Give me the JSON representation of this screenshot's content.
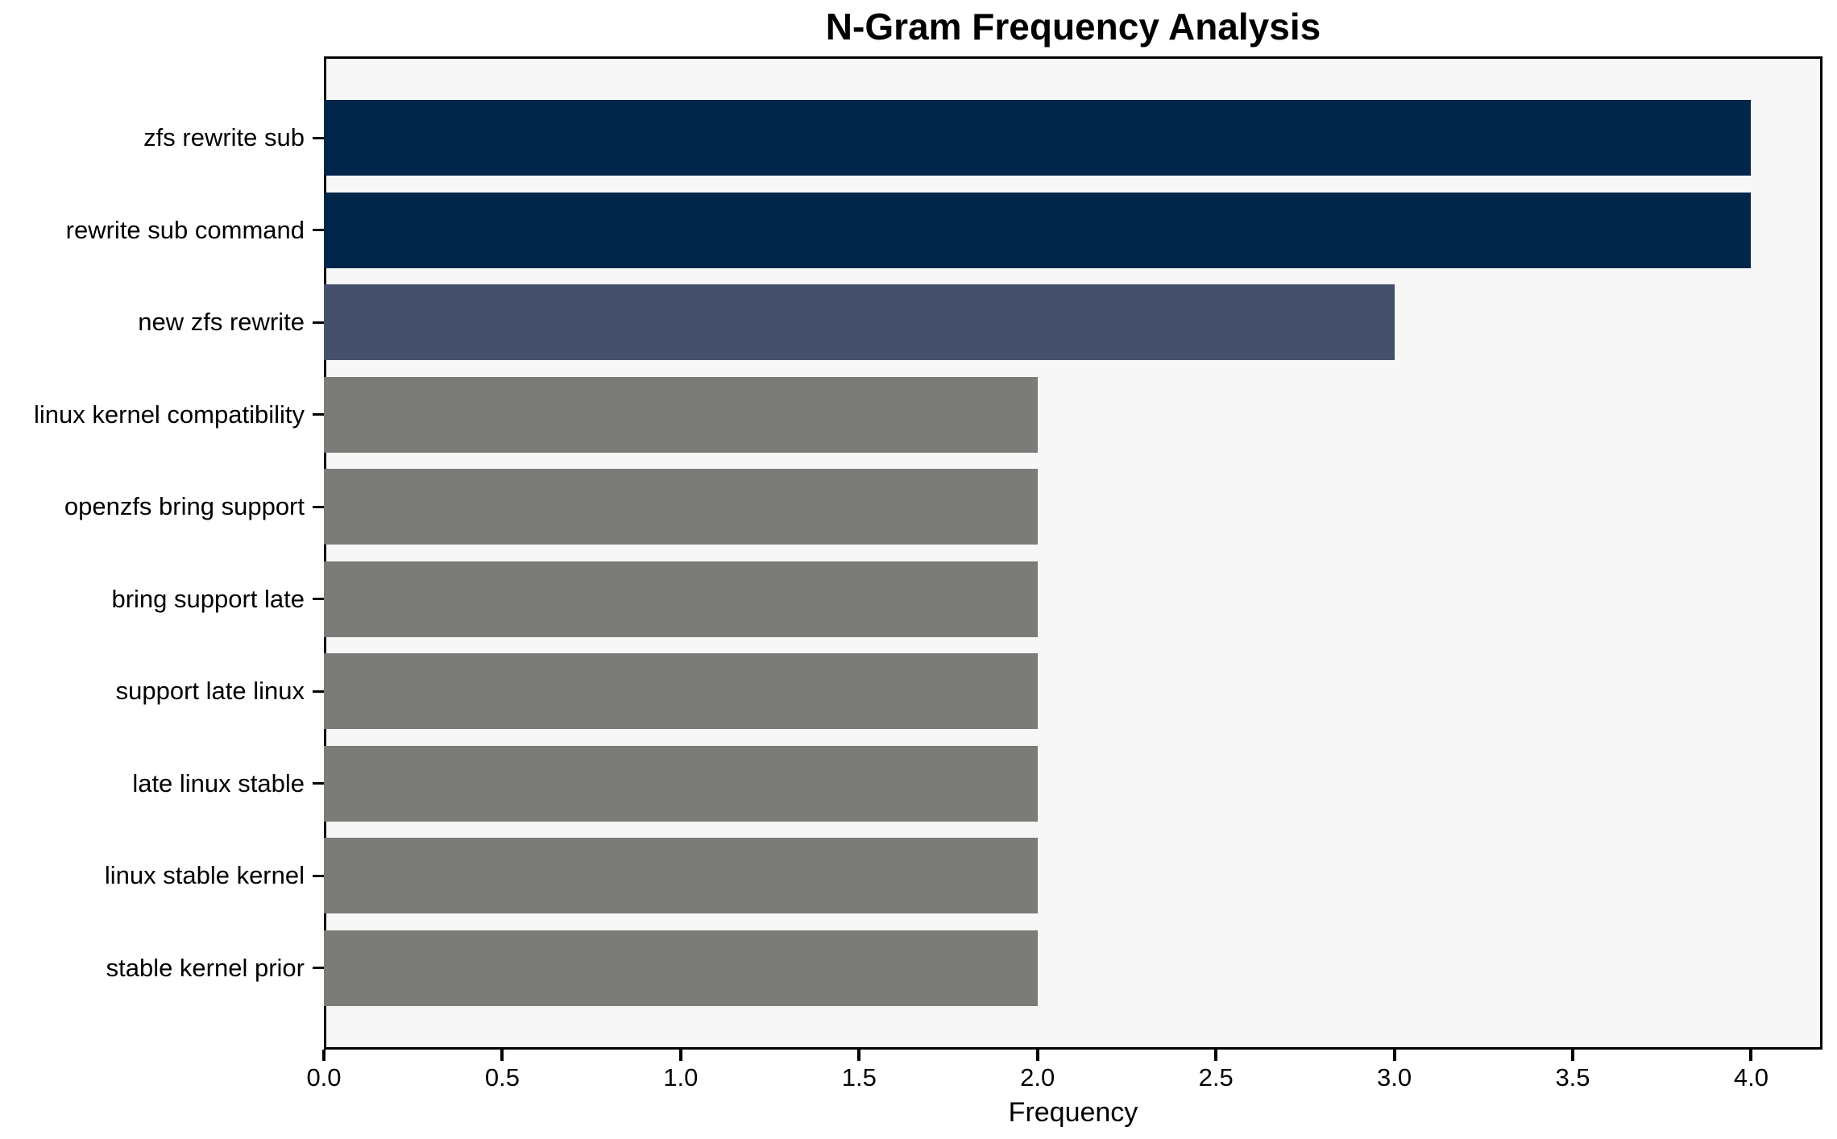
{
  "chart_data": {
    "type": "bar",
    "orientation": "horizontal",
    "title": "N-Gram Frequency Analysis",
    "xlabel": "Frequency",
    "ylabel": "",
    "categories": [
      "zfs rewrite sub",
      "rewrite sub command",
      "new zfs rewrite",
      "linux kernel compatibility",
      "openzfs bring support",
      "bring support late",
      "support late linux",
      "late linux stable",
      "linux stable kernel",
      "stable kernel prior"
    ],
    "values": [
      4,
      4,
      3,
      2,
      2,
      2,
      2,
      2,
      2,
      2
    ],
    "bar_colors": [
      "#02254a",
      "#02254a",
      "#45506c",
      "#7b7b78",
      "#7b7b78",
      "#7b7b78",
      "#7b7b78",
      "#7b7b78",
      "#7b7b78",
      "#7b7b78"
    ],
    "xlim": [
      0,
      4.2
    ],
    "xticks": [
      "0.0",
      "0.5",
      "1.0",
      "1.5",
      "2.0",
      "2.5",
      "3.0",
      "3.5",
      "4.0"
    ],
    "grid": false,
    "legend": null,
    "plot_background": "#f7f7f7",
    "figure_background": "#ffffff",
    "axis_color": "#000000"
  }
}
